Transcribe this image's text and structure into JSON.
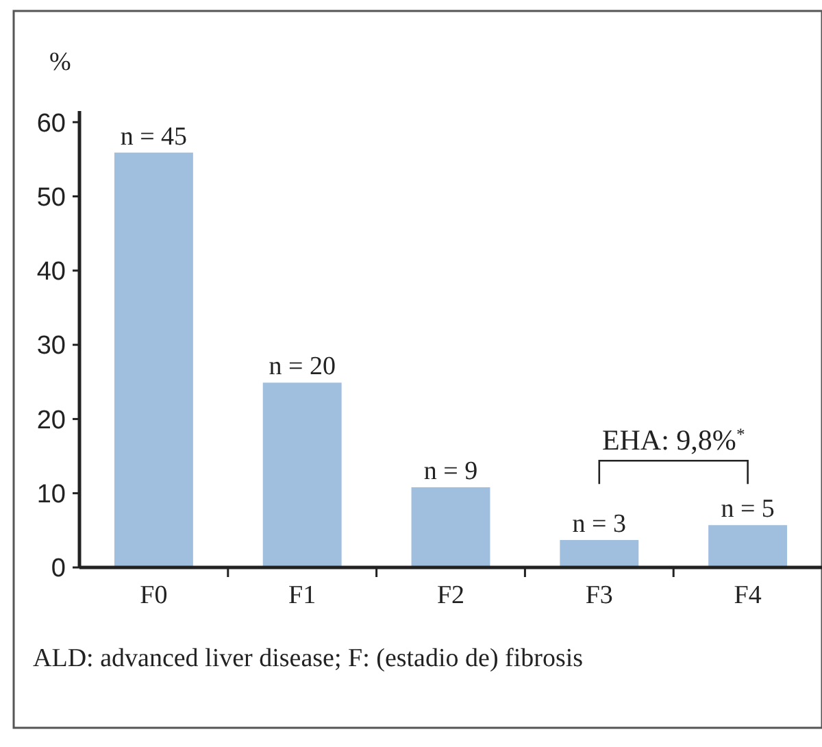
{
  "chart_data": {
    "type": "bar",
    "ylabel": "%",
    "categories": [
      "F0",
      "F1",
      "F2",
      "F3",
      "F4"
    ],
    "values": [
      55.9,
      24.9,
      10.8,
      3.7,
      5.7
    ],
    "color": "#a0bedd",
    "ylim": [
      0,
      61.5
    ],
    "yticks": [
      0,
      10,
      20,
      30,
      40,
      50,
      60
    ],
    "grid": false,
    "annotations": [
      "EHA: 9,8%$^{*}$",
      "ALD: advanced liver disease; F: (estadio de) fibrosis",
      {
        "text": "n = 45",
        "x": "F0",
        "y": 55.9
      },
      {
        "text": "n = 20",
        "x": "F1",
        "y": 24.9
      },
      {
        "text": "n = 9",
        "x": "F2",
        "y": 10.8
      },
      {
        "text": "n = 3",
        "x": "F3",
        "y": 3.7
      },
      {
        "text": "n = 5",
        "x": "F4",
        "y": 5.7
      }
    ]
  }
}
